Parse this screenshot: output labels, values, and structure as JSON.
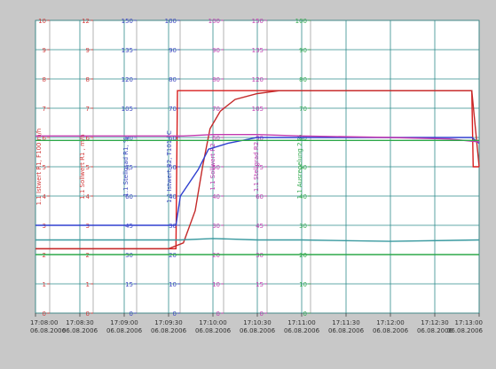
{
  "chart_data": {
    "type": "line",
    "title": "",
    "grid": true,
    "axes": [
      {
        "id": "a1",
        "color": "#d23a3a",
        "title": "1.1 Istwert R1, F100 m/h",
        "ticks": [
          "10",
          "9",
          "8",
          "7",
          "6",
          "5",
          "4",
          "3",
          "2",
          "1",
          "0"
        ],
        "range": [
          0,
          10
        ]
      },
      {
        "id": "a2",
        "color": "#d23a3a",
        "title": "1.1 Sollwert R1 , m/h",
        "ticks": [
          "12",
          "9",
          "8",
          "7",
          "6",
          "5",
          "4",
          "3",
          "2",
          "1",
          "0"
        ],
        "range": [
          0,
          12
        ]
      },
      {
        "id": "a3",
        "color": "#3a44c0",
        "title": "1.1 Stellgrad R1, %",
        "ticks": [
          "150",
          "135",
          "120",
          "105",
          "90",
          "75",
          "60",
          "45",
          "30",
          "15",
          "0"
        ],
        "range": [
          0,
          150
        ]
      },
      {
        "id": "a4",
        "color": "#3a44c0",
        "title": "1.1 Istwert R2, T101 °C",
        "ticks": [
          "100",
          "90",
          "80",
          "70",
          "60",
          "50",
          "40",
          "30",
          "20",
          "10",
          "0"
        ],
        "range": [
          0,
          100
        ]
      },
      {
        "id": "a5",
        "color": "#c23ab0",
        "title": "1.1 Sollwert R2",
        "ticks": [
          "100",
          "90",
          "80",
          "70",
          "60",
          "50",
          "40",
          "30",
          "20",
          "10",
          "0"
        ],
        "range": [
          0,
          100
        ]
      },
      {
        "id": "a6",
        "color": "#c23ab0",
        "title": "1.1 Stellgrad R2",
        "ticks": [
          "150",
          "135",
          "120",
          "105",
          "90",
          "75",
          "60",
          "45",
          "30",
          "15",
          "0"
        ],
        "range": [
          0,
          150
        ]
      },
      {
        "id": "a7",
        "color": "#2ea84a",
        "title": "1.1 Ausregelung 2 %",
        "ticks": [
          "100",
          "90",
          "80",
          "70",
          "60",
          "50",
          "40",
          "30",
          "20",
          "10",
          "0"
        ],
        "range": [
          0,
          100
        ]
      }
    ],
    "x_ticks": [
      {
        "time": "17:08:00",
        "date": "06.08.2006"
      },
      {
        "time": "17:08:30",
        "date": "06.08.2006"
      },
      {
        "time": "17:09:00",
        "date": "06.08.2006"
      },
      {
        "time": "17:09:30",
        "date": "06.08.2006"
      },
      {
        "time": "17:10:00",
        "date": "06.08.2006"
      },
      {
        "time": "17:10:30",
        "date": "06.08.2006"
      },
      {
        "time": "17:11:00",
        "date": "06.08.2006"
      },
      {
        "time": "17:11:30",
        "date": "06.08.2006"
      },
      {
        "time": "17:12:00",
        "date": "06.08.2006"
      },
      {
        "time": "17:12:30",
        "date": "06.08.2006"
      },
      {
        "time": "17:13:00",
        "date": "06.08.2006"
      }
    ],
    "xlim": [
      "17:08:00",
      "17:13:00"
    ],
    "series": [
      {
        "color": "#d81e1e",
        "x": [
          "17:08:00",
          "17:09:35",
          "17:09:36",
          "17:12:55",
          "17:12:56",
          "17:13:00"
        ],
        "y": [
          2.2,
          2.2,
          7.6,
          7.6,
          5.0,
          5.0
        ]
      },
      {
        "color": "#c42a2a",
        "x": [
          "17:08:00",
          "17:09:30",
          "17:09:40",
          "17:09:48",
          "17:09:53",
          "17:09:58",
          "17:10:05",
          "17:10:15",
          "17:10:30",
          "17:10:45",
          "17:11:00",
          "17:12:00",
          "17:12:55",
          "17:13:00"
        ],
        "y": [
          2.2,
          2.2,
          2.4,
          3.5,
          5.0,
          6.3,
          6.9,
          7.3,
          7.5,
          7.6,
          7.6,
          7.6,
          7.6,
          5.0
        ]
      },
      {
        "color": "#3040d0",
        "x": [
          "17:08:00",
          "17:09:35",
          "17:09:38",
          "17:09:50",
          "17:09:57",
          "17:10:10",
          "17:10:30",
          "17:11:00",
          "17:12:00",
          "17:12:55",
          "17:13:00"
        ],
        "y": [
          3.0,
          3.0,
          4.0,
          4.9,
          5.6,
          5.8,
          6.0,
          6.0,
          6.0,
          6.0,
          5.8
        ]
      },
      {
        "color": "#c23ab0",
        "x": [
          "17:08:00",
          "17:09:00",
          "17:09:40",
          "17:10:00",
          "17:10:30",
          "17:11:00",
          "17:12:00",
          "17:12:40",
          "17:13:00"
        ],
        "y": [
          6.05,
          6.05,
          6.05,
          6.1,
          6.1,
          6.05,
          6.0,
          5.95,
          5.85
        ]
      },
      {
        "color": "#3a9aa0",
        "x": [
          "17:08:00",
          "17:09:38",
          "17:10:00",
          "17:10:30",
          "17:11:00",
          "17:12:00",
          "17:13:00"
        ],
        "y": [
          2.5,
          2.5,
          2.55,
          2.5,
          2.5,
          2.45,
          2.5
        ]
      },
      {
        "color": "#2ea84a",
        "x": [
          "17:08:00",
          "17:13:00"
        ],
        "y": [
          2.0,
          2.0
        ]
      },
      {
        "color": "#2ea84a",
        "x": [
          "17:08:00",
          "17:13:00"
        ],
        "y": [
          5.9,
          5.9
        ]
      }
    ]
  }
}
